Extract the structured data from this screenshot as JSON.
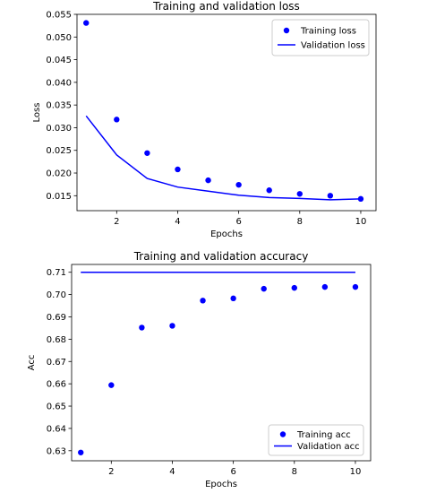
{
  "chart_data": [
    {
      "type": "line",
      "title": "Training and validation loss",
      "xlabel": "Epochs",
      "ylabel": "Loss",
      "xlim": [
        0.7,
        10.5
      ],
      "ylim": [
        0.0117,
        0.055
      ],
      "xticks": [
        2,
        4,
        6,
        8,
        10
      ],
      "yticks": [
        0.015,
        0.02,
        0.025,
        0.03,
        0.035,
        0.04,
        0.045,
        0.05,
        0.055
      ],
      "ytick_labels": [
        "0.015",
        "0.020",
        "0.025",
        "0.030",
        "0.035",
        "0.040",
        "0.045",
        "0.050",
        "0.055"
      ],
      "legend_position": "top-right",
      "color": "#0000ff",
      "series": [
        {
          "name": "Training loss",
          "style": "points",
          "x": [
            1,
            2,
            3,
            4,
            5,
            6,
            7,
            8,
            9,
            10
          ],
          "y": [
            0.0531,
            0.0318,
            0.0244,
            0.0208,
            0.0184,
            0.0174,
            0.0162,
            0.0154,
            0.015,
            0.0143
          ]
        },
        {
          "name": "Validation loss",
          "style": "line",
          "x": [
            1,
            2,
            3,
            4,
            5,
            6,
            7,
            8,
            9,
            10
          ],
          "y": [
            0.0326,
            0.024,
            0.0188,
            0.0169,
            0.016,
            0.0151,
            0.0146,
            0.0144,
            0.0141,
            0.0143
          ]
        }
      ]
    },
    {
      "type": "line",
      "title": "Training and validation accuracy",
      "xlabel": "Epochs",
      "ylabel": "Acc",
      "xlim": [
        0.7,
        10.5
      ],
      "ylim": [
        0.6255,
        0.7135
      ],
      "xticks": [
        2,
        4,
        6,
        8,
        10
      ],
      "yticks": [
        0.63,
        0.64,
        0.65,
        0.66,
        0.67,
        0.68,
        0.69,
        0.7,
        0.71
      ],
      "ytick_labels": [
        "0.63",
        "0.64",
        "0.65",
        "0.66",
        "0.67",
        "0.68",
        "0.69",
        "0.70",
        "0.71"
      ],
      "legend_position": "bottom-right",
      "color": "#0000ff",
      "series": [
        {
          "name": "Training acc",
          "style": "points",
          "x": [
            1,
            2,
            3,
            4,
            5,
            6,
            7,
            8,
            9,
            10
          ],
          "y": [
            0.6292,
            0.6594,
            0.6852,
            0.686,
            0.6973,
            0.6983,
            0.7026,
            0.703,
            0.7034,
            0.7034
          ]
        },
        {
          "name": "Validation acc",
          "style": "line",
          "x": [
            1,
            2,
            3,
            4,
            5,
            6,
            7,
            8,
            9,
            10
          ],
          "y": [
            0.71,
            0.71,
            0.71,
            0.71,
            0.71,
            0.71,
            0.71,
            0.71,
            0.71,
            0.71
          ]
        }
      ]
    }
  ]
}
